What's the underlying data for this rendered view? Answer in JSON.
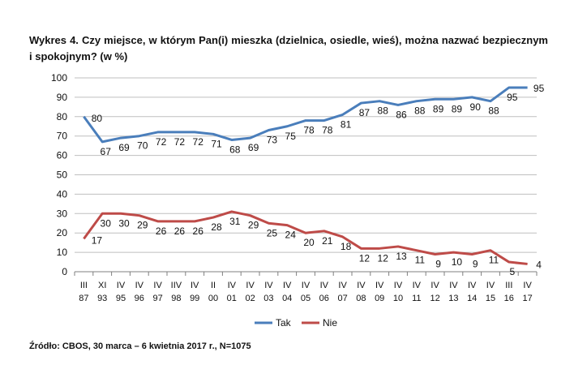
{
  "chart_data": {
    "type": "line",
    "title": "Wykres 4. Czy miejsce, w którym Pan(i) mieszka (dzielnica, osiedle, wieś), można nazwać bezpiecznym i spokojnym? (w %)",
    "source": "Źródło: CBOS, 30 marca – 6 kwietnia 2017 r., N=1075",
    "categories": [
      [
        "III",
        "87"
      ],
      [
        "XI",
        "93"
      ],
      [
        "IV",
        "95"
      ],
      [
        "IV",
        "96"
      ],
      [
        "IV",
        "97"
      ],
      [
        "IIV",
        "98"
      ],
      [
        "IV",
        "99"
      ],
      [
        "II",
        "00"
      ],
      [
        "IV",
        "01"
      ],
      [
        "IV",
        "02"
      ],
      [
        "IV",
        "03"
      ],
      [
        "IV",
        "04"
      ],
      [
        "IV",
        "05"
      ],
      [
        "IV",
        "06"
      ],
      [
        "IV",
        "07"
      ],
      [
        "IV",
        "08"
      ],
      [
        "IV",
        "09"
      ],
      [
        "IV",
        "10"
      ],
      [
        "IV",
        "11"
      ],
      [
        "IV",
        "12"
      ],
      [
        "IV",
        "13"
      ],
      [
        "IV",
        "14"
      ],
      [
        "IV",
        "15"
      ],
      [
        "III",
        "16"
      ],
      [
        "IV",
        "17"
      ]
    ],
    "series": [
      {
        "name": "Tak",
        "color": "#4a7ebb",
        "values": [
          80,
          67,
          69,
          70,
          72,
          72,
          72,
          71,
          68,
          69,
          73,
          75,
          78,
          78,
          81,
          87,
          88,
          86,
          88,
          89,
          89,
          90,
          88,
          95,
          95
        ]
      },
      {
        "name": "Nie",
        "color": "#be4b48",
        "values": [
          17,
          30,
          30,
          29,
          26,
          26,
          26,
          28,
          31,
          29,
          25,
          24,
          20,
          21,
          18,
          12,
          12,
          13,
          11,
          9,
          10,
          9,
          11,
          5,
          4
        ]
      }
    ],
    "ylim": [
      0,
      100
    ],
    "yticks": [
      0,
      10,
      20,
      30,
      40,
      50,
      60,
      70,
      80,
      90,
      100
    ],
    "grid": true,
    "legend": "bottom"
  }
}
